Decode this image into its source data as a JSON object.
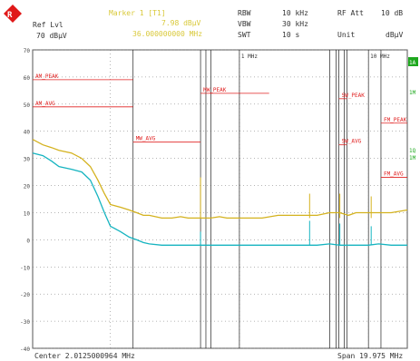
{
  "header": {
    "marker_label": "Marker 1 [T1]",
    "marker_level": "7.98 dBµV",
    "marker_freq": "36.000000000 MHz",
    "ref_lvl": "Ref Lvl",
    "ref_value": "70 dBµV",
    "rbw_label": "RBW",
    "rbw_value": "10 kHz",
    "vbw_label": "VBW",
    "vbw_value": "30 kHz",
    "swt_label": "SWT",
    "swt_value": "10 s",
    "rf_att_label": "RF Att",
    "rf_att_value": "10 dB",
    "unit_label": "Unit",
    "unit_value": "dBµV"
  },
  "footer": {
    "center": "Center 2.0125000964 MHz",
    "span": "Span 19.975 MHz"
  },
  "side_labels": {
    "a": "1A",
    "b": "1M",
    "c": "1Q",
    "c2": "1M"
  },
  "colors": {
    "grid": "#6e6e6e",
    "frame": "#555555",
    "limit": "#e02020",
    "trace1": "#d4b21e",
    "trace2": "#16b4c0",
    "side_label": "#1ea81e",
    "marker_text": "#d9c93a"
  },
  "chart_data": {
    "type": "line",
    "x_scale": "log",
    "x_range_mhz": [
      0.025,
      20
    ],
    "ylim": [
      -40,
      70
    ],
    "y_ticks": [
      70,
      60,
      50,
      40,
      30,
      20,
      10,
      0,
      -10,
      -20,
      -30,
      -40
    ],
    "x_tick_labels": [
      {
        "mhz": 1,
        "label": "1 MHz"
      },
      {
        "mhz": 10,
        "label": "10 MHz"
      }
    ],
    "vertical_lines_mhz": [
      0.15,
      0.5,
      0.55,
      0.6,
      1.0,
      5.0,
      5.6,
      5.9,
      6.5,
      6.8,
      10.0,
      12.5
    ],
    "limit_lines": [
      {
        "label": "AM_PEAK",
        "x_mhz": [
          0.025,
          0.15
        ],
        "y": 59
      },
      {
        "label": "AM_AVG",
        "x_mhz": [
          0.025,
          0.15
        ],
        "y": 49
      },
      {
        "label": "MW_PEAK",
        "x_mhz": [
          0.5,
          1.7
        ],
        "y": 54
      },
      {
        "label": "MW_AVG",
        "x_mhz": [
          0.15,
          0.5
        ],
        "y": 36
      },
      {
        "label": "SW_PEAK",
        "x_mhz": [
          5.9,
          6.8
        ],
        "y": 52
      },
      {
        "label": "SW_AVG",
        "x_mhz": [
          5.9,
          6.8
        ],
        "y": 35
      },
      {
        "label": "FM_PEAK",
        "x_mhz": [
          12.5,
          20
        ],
        "y": 43
      },
      {
        "label": "FM_AVG",
        "x_mhz": [
          12.5,
          20
        ],
        "y": 23
      }
    ],
    "series": [
      {
        "x_mhz": [
          0.025,
          0.03,
          0.035,
          0.04,
          0.05,
          0.06,
          0.07,
          0.08,
          0.09,
          0.1,
          0.12,
          0.14,
          0.16,
          0.18,
          0.2,
          0.25,
          0.3,
          0.35,
          0.4,
          0.45,
          0.5,
          0.6,
          0.7,
          0.8,
          1,
          1.5,
          2,
          3,
          4,
          5,
          6,
          7,
          8,
          10,
          12,
          15,
          20
        ],
        "y": [
          37,
          35,
          34,
          33,
          32,
          30,
          27,
          22,
          17,
          13,
          12,
          11,
          10,
          9,
          9,
          8,
          8,
          8.5,
          8,
          8,
          8,
          8,
          8.5,
          8,
          8,
          8,
          9,
          9,
          9,
          10,
          10,
          9,
          10,
          10,
          10,
          10,
          11
        ]
      },
      {
        "x_mhz": [
          0.025,
          0.03,
          0.035,
          0.04,
          0.05,
          0.06,
          0.07,
          0.08,
          0.09,
          0.1,
          0.12,
          0.14,
          0.16,
          0.18,
          0.2,
          0.25,
          0.3,
          0.35,
          0.4,
          0.45,
          0.5,
          0.6,
          0.7,
          0.8,
          1,
          1.5,
          2,
          3,
          4,
          5,
          6,
          7,
          8,
          10,
          12,
          15,
          20
        ],
        "y": [
          32,
          31,
          29,
          27,
          26,
          25,
          22,
          16,
          10,
          5,
          3,
          1,
          0,
          -1,
          -1.5,
          -2,
          -2,
          -2,
          -2,
          -2,
          -2,
          -2,
          -2,
          -2,
          -2,
          -2,
          -2,
          -2,
          -2,
          -1.5,
          -2,
          -2,
          -2,
          -2,
          -1.5,
          -2,
          -2
        ]
      }
    ],
    "spikes": [
      {
        "series": 0,
        "x_mhz": 0.5,
        "y": 23
      },
      {
        "series": 0,
        "x_mhz": 3.5,
        "y": 17
      },
      {
        "series": 0,
        "x_mhz": 6.0,
        "y": 17
      },
      {
        "series": 0,
        "x_mhz": 10.5,
        "y": 16
      },
      {
        "series": 1,
        "x_mhz": 0.5,
        "y": 3
      },
      {
        "series": 1,
        "x_mhz": 3.5,
        "y": 7
      },
      {
        "series": 1,
        "x_mhz": 6.0,
        "y": 6
      },
      {
        "series": 1,
        "x_mhz": 10.5,
        "y": 5
      }
    ]
  }
}
